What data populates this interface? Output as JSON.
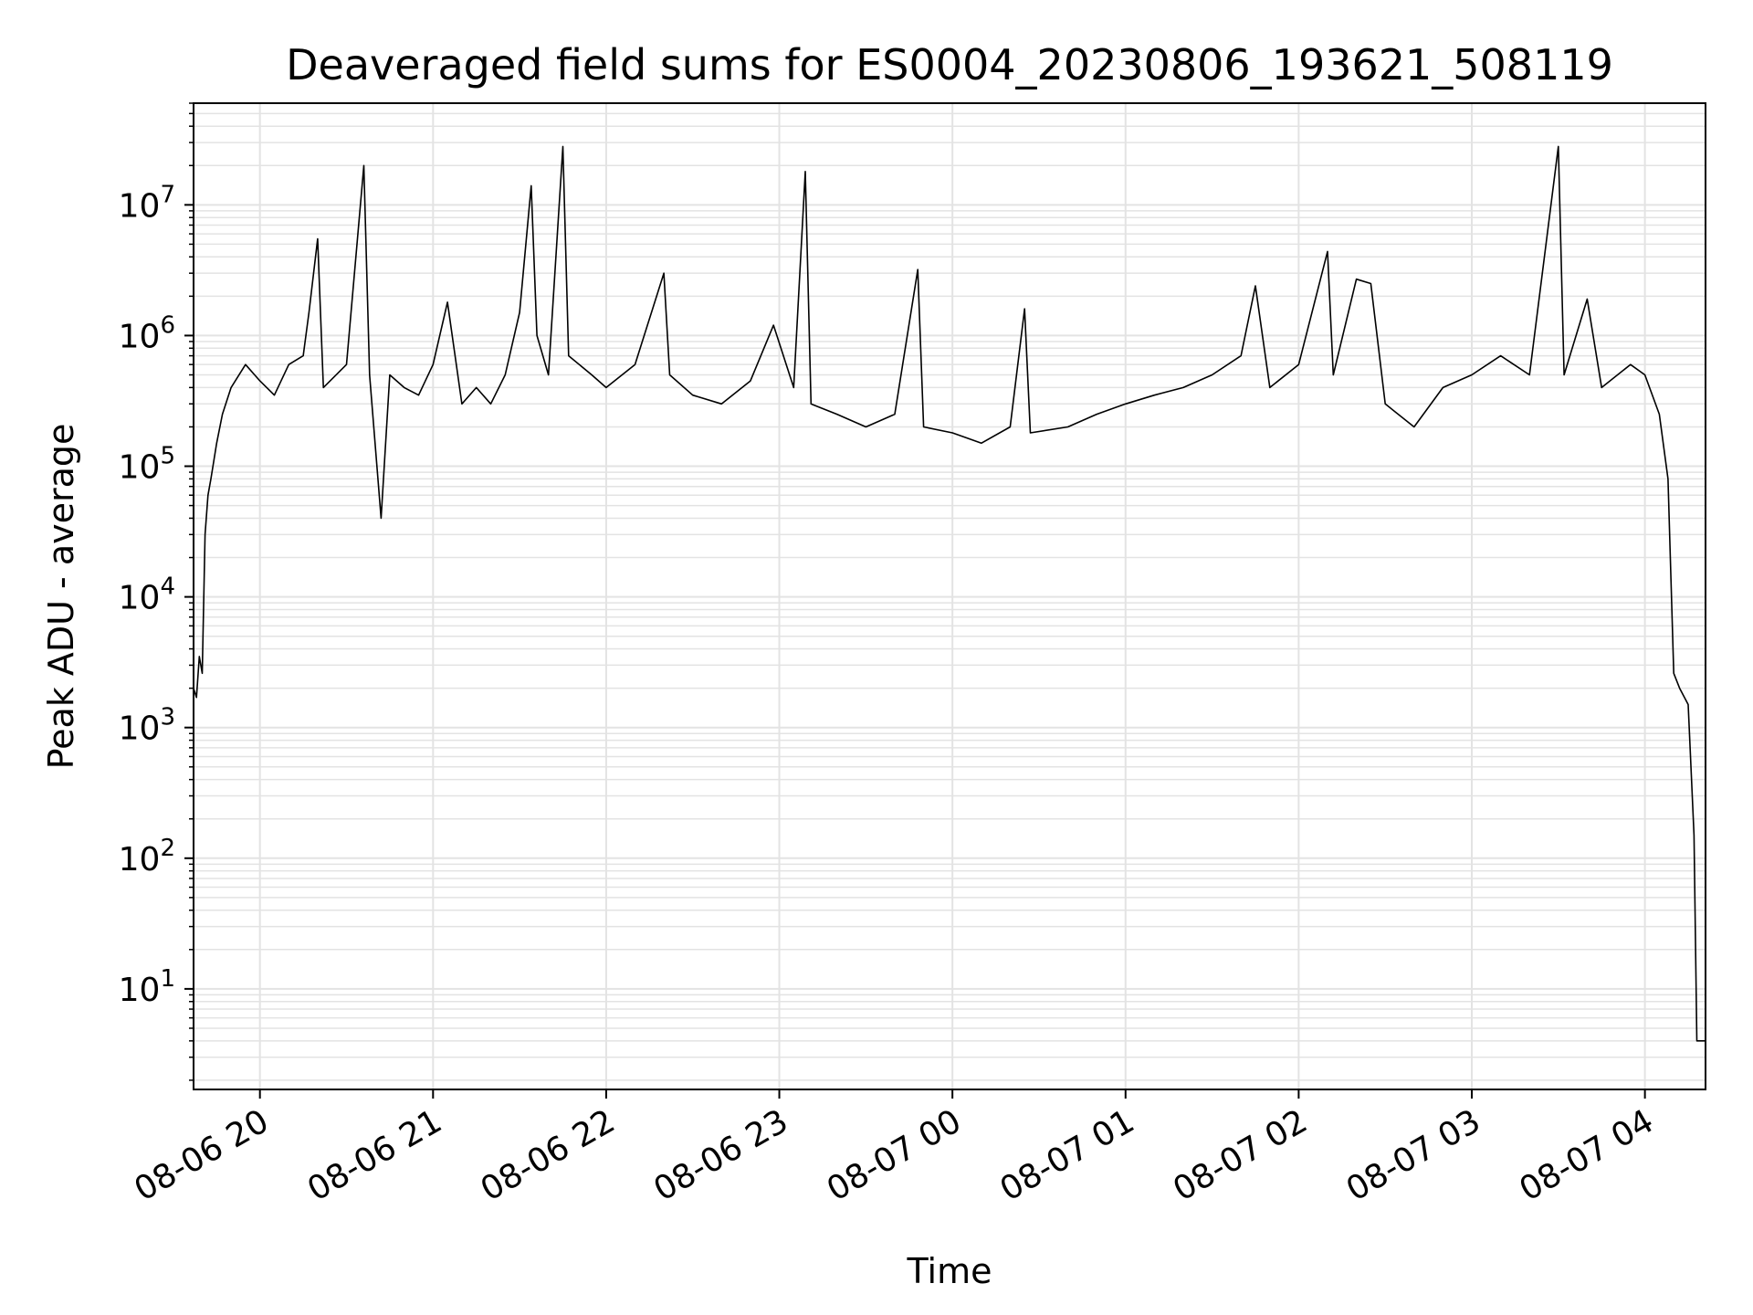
{
  "chart_data": {
    "type": "line",
    "title": "Deaveraged field sums for ES0004_20230806_193621_508119",
    "xlabel": "Time",
    "ylabel": "Peak ADU - average",
    "y_scale": "log",
    "xlim": [
      "2023-08-06 19:37",
      "2023-08-07 04:21"
    ],
    "ylim": [
      1.7,
      60000000.0
    ],
    "grid": true,
    "grid_minor": true,
    "line_color": "#000000",
    "grid_color": "#e3e3e3",
    "x_ticks": [
      {
        "value": "2023-08-06 20:00",
        "label": "08-06 20"
      },
      {
        "value": "2023-08-06 21:00",
        "label": "08-06 21"
      },
      {
        "value": "2023-08-06 22:00",
        "label": "08-06 22"
      },
      {
        "value": "2023-08-06 23:00",
        "label": "08-06 23"
      },
      {
        "value": "2023-08-07 00:00",
        "label": "08-07 00"
      },
      {
        "value": "2023-08-07 01:00",
        "label": "08-07 01"
      },
      {
        "value": "2023-08-07 02:00",
        "label": "08-07 02"
      },
      {
        "value": "2023-08-07 03:00",
        "label": "08-07 03"
      },
      {
        "value": "2023-08-07 04:00",
        "label": "08-07 04"
      }
    ],
    "y_ticks": [
      {
        "value": 10,
        "base": "10",
        "exp": "1"
      },
      {
        "value": 100,
        "base": "10",
        "exp": "2"
      },
      {
        "value": 1000,
        "base": "10",
        "exp": "3"
      },
      {
        "value": 10000,
        "base": "10",
        "exp": "4"
      },
      {
        "value": 100000,
        "base": "10",
        "exp": "5"
      },
      {
        "value": 1000000,
        "base": "10",
        "exp": "6"
      },
      {
        "value": 10000000,
        "base": "10",
        "exp": "7"
      }
    ],
    "series": [
      {
        "points": [
          [
            "2023-08-06 19:37",
            2000
          ],
          [
            "2023-08-06 19:38",
            1700
          ],
          [
            "2023-08-06 19:39",
            3500
          ],
          [
            "2023-08-06 19:40",
            2600
          ],
          [
            "2023-08-06 19:41",
            30000
          ],
          [
            "2023-08-06 19:42",
            60000
          ],
          [
            "2023-08-06 19:43",
            80000
          ],
          [
            "2023-08-06 19:45",
            150000
          ],
          [
            "2023-08-06 19:47",
            250000
          ],
          [
            "2023-08-06 19:50",
            400000
          ],
          [
            "2023-08-06 19:55",
            600000
          ],
          [
            "2023-08-06 20:00",
            450000
          ],
          [
            "2023-08-06 20:05",
            350000
          ],
          [
            "2023-08-06 20:10",
            600000
          ],
          [
            "2023-08-06 20:15",
            700000
          ],
          [
            "2023-08-06 20:17",
            1500000
          ],
          [
            "2023-08-06 20:20",
            5500000
          ],
          [
            "2023-08-06 20:22",
            400000
          ],
          [
            "2023-08-06 20:30",
            600000
          ],
          [
            "2023-08-06 20:36",
            20000000
          ],
          [
            "2023-08-06 20:38",
            500000
          ],
          [
            "2023-08-06 20:42",
            40000
          ],
          [
            "2023-08-06 20:45",
            500000
          ],
          [
            "2023-08-06 20:50",
            400000
          ],
          [
            "2023-08-06 20:55",
            350000
          ],
          [
            "2023-08-06 21:00",
            600000
          ],
          [
            "2023-08-06 21:05",
            1800000
          ],
          [
            "2023-08-06 21:10",
            300000
          ],
          [
            "2023-08-06 21:15",
            400000
          ],
          [
            "2023-08-06 21:20",
            300000
          ],
          [
            "2023-08-06 21:25",
            500000
          ],
          [
            "2023-08-06 21:30",
            1500000
          ],
          [
            "2023-08-06 21:34",
            14000000
          ],
          [
            "2023-08-06 21:36",
            1000000
          ],
          [
            "2023-08-06 21:40",
            500000
          ],
          [
            "2023-08-06 21:45",
            28000000
          ],
          [
            "2023-08-06 21:47",
            700000
          ],
          [
            "2023-08-06 21:55",
            500000
          ],
          [
            "2023-08-06 22:00",
            400000
          ],
          [
            "2023-08-06 22:10",
            600000
          ],
          [
            "2023-08-06 22:20",
            3000000
          ],
          [
            "2023-08-06 22:22",
            500000
          ],
          [
            "2023-08-06 22:30",
            350000
          ],
          [
            "2023-08-06 22:40",
            300000
          ],
          [
            "2023-08-06 22:50",
            450000
          ],
          [
            "2023-08-06 22:58",
            1200000
          ],
          [
            "2023-08-06 23:05",
            400000
          ],
          [
            "2023-08-06 23:09",
            18000000
          ],
          [
            "2023-08-06 23:11",
            300000
          ],
          [
            "2023-08-06 23:20",
            250000
          ],
          [
            "2023-08-06 23:30",
            200000
          ],
          [
            "2023-08-06 23:40",
            250000
          ],
          [
            "2023-08-06 23:48",
            3200000
          ],
          [
            "2023-08-06 23:50",
            200000
          ],
          [
            "2023-08-07 00:00",
            180000
          ],
          [
            "2023-08-07 00:10",
            150000
          ],
          [
            "2023-08-07 00:20",
            200000
          ],
          [
            "2023-08-07 00:25",
            1600000
          ],
          [
            "2023-08-07 00:27",
            180000
          ],
          [
            "2023-08-07 00:40",
            200000
          ],
          [
            "2023-08-07 00:50",
            250000
          ],
          [
            "2023-08-07 01:00",
            300000
          ],
          [
            "2023-08-07 01:10",
            350000
          ],
          [
            "2023-08-07 01:20",
            400000
          ],
          [
            "2023-08-07 01:30",
            500000
          ],
          [
            "2023-08-07 01:40",
            700000
          ],
          [
            "2023-08-07 01:45",
            2400000
          ],
          [
            "2023-08-07 01:50",
            400000
          ],
          [
            "2023-08-07 02:00",
            600000
          ],
          [
            "2023-08-07 02:10",
            4400000
          ],
          [
            "2023-08-07 02:12",
            500000
          ],
          [
            "2023-08-07 02:20",
            2700000
          ],
          [
            "2023-08-07 02:25",
            2500000
          ],
          [
            "2023-08-07 02:30",
            300000
          ],
          [
            "2023-08-07 02:40",
            200000
          ],
          [
            "2023-08-07 02:50",
            400000
          ],
          [
            "2023-08-07 03:00",
            500000
          ],
          [
            "2023-08-07 03:10",
            700000
          ],
          [
            "2023-08-07 03:20",
            500000
          ],
          [
            "2023-08-07 03:30",
            28000000
          ],
          [
            "2023-08-07 03:32",
            500000
          ],
          [
            "2023-08-07 03:40",
            1900000
          ],
          [
            "2023-08-07 03:45",
            400000
          ],
          [
            "2023-08-07 03:55",
            600000
          ],
          [
            "2023-08-07 04:00",
            500000
          ],
          [
            "2023-08-07 04:05",
            250000
          ],
          [
            "2023-08-07 04:08",
            80000
          ],
          [
            "2023-08-07 04:10",
            2600
          ],
          [
            "2023-08-07 04:12",
            2000
          ],
          [
            "2023-08-07 04:15",
            1500
          ],
          [
            "2023-08-07 04:17",
            150
          ],
          [
            "2023-08-07 04:18",
            4
          ],
          [
            "2023-08-07 04:21",
            4
          ]
        ]
      }
    ]
  }
}
